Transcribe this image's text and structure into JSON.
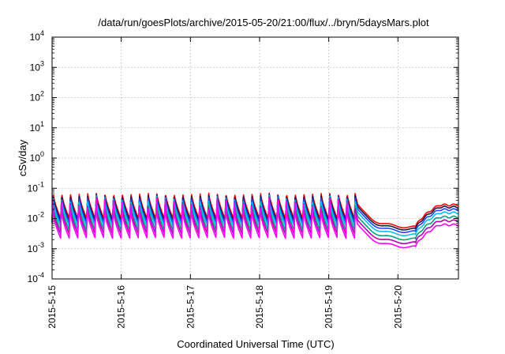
{
  "chart_data": {
    "type": "line",
    "title": "/data/run/goesPlots/archive/2015-05-20/21:00/flux/../bryn/5daysMars.plot",
    "xlabel": "Coordinated Universal Time (UTC)",
    "ylabel": "cSv/day",
    "y_scale": "log",
    "ylim": [
      0.0001,
      10000
    ],
    "y_tick_labels": [
      {
        "value": 0.0001,
        "base": "10",
        "exp": "-4"
      },
      {
        "value": 0.001,
        "base": "10",
        "exp": "-3"
      },
      {
        "value": 0.01,
        "base": "10",
        "exp": "-2"
      },
      {
        "value": 0.1,
        "base": "10",
        "exp": "-1"
      },
      {
        "value": 1,
        "base": "10",
        "exp": "0"
      },
      {
        "value": 10,
        "base": "10",
        "exp": "1"
      },
      {
        "value": 100,
        "base": "10",
        "exp": "2"
      },
      {
        "value": 1000,
        "base": "10",
        "exp": "3"
      },
      {
        "value": 10000,
        "base": "10",
        "exp": "4"
      }
    ],
    "xlim": [
      "2015-05-15",
      "2015-05-20 21:00"
    ],
    "x_tick_labels": [
      {
        "value": "2015-05-15",
        "label": "2015-5-15"
      },
      {
        "value": "2015-05-16",
        "label": "2015-5-16"
      },
      {
        "value": "2015-05-17",
        "label": "2015-5-17"
      },
      {
        "value": "2015-05-18",
        "label": "2015-5-18"
      },
      {
        "value": "2015-05-19",
        "label": "2015-5-19"
      },
      {
        "value": "2015-05-20",
        "label": "2015-5-20"
      }
    ],
    "grid": true,
    "series": [
      {
        "color": "#ff0000",
        "relative_level": 1.0
      },
      {
        "color": "#1a1a3a",
        "relative_level": 0.85
      },
      {
        "color": "#2244ff",
        "relative_level": 0.7
      },
      {
        "color": "#00c0ff",
        "relative_level": 0.55
      },
      {
        "color": "#00a080",
        "relative_level": 0.4
      },
      {
        "color": "#b000b0",
        "relative_level": 0.3
      },
      {
        "color": "#ff00ff",
        "relative_level": 0.22
      }
    ],
    "profile": {
      "oscillation_period_hours": 3,
      "phase1_end": "2015-05-19 09:00",
      "top_series_peak": 0.07,
      "top_series_trough": 0.01,
      "drop_start": "2015-05-19 10:00",
      "quiet_level_top": 0.005,
      "quiet_min_top": 0.0045,
      "recovery_start": "2015-05-20 06:00",
      "end_level_top": 0.028
    }
  }
}
